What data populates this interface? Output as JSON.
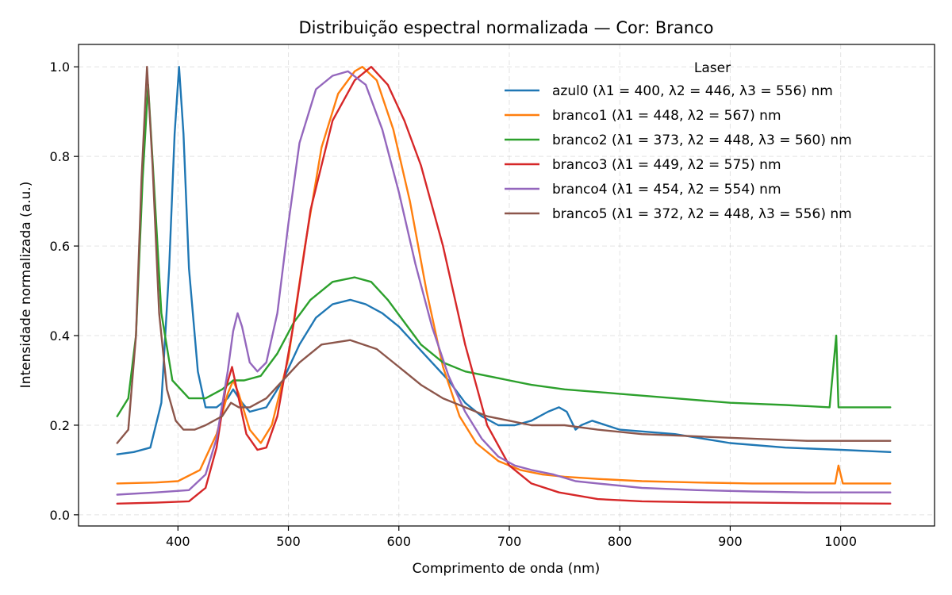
{
  "chart_data": {
    "type": "line",
    "title": "Distribuição espectral normalizada — Cor: Branco",
    "xlabel": "Comprimento de onda (nm)",
    "ylabel": "Intensidade normalizada (a.u.)",
    "xlim": [
      310,
      1085
    ],
    "ylim": [
      -0.025,
      1.05
    ],
    "xticks": [
      400,
      500,
      600,
      700,
      800,
      900,
      1000
    ],
    "yticks": [
      0.0,
      0.2,
      0.4,
      0.6,
      0.8,
      1.0
    ],
    "xtick_labels": [
      "400",
      "500",
      "600",
      "700",
      "800",
      "900",
      "1000"
    ],
    "ytick_labels": [
      "0.0",
      "0.2",
      "0.4",
      "0.6",
      "0.8",
      "1.0"
    ],
    "grid": true,
    "legend": {
      "title": "Laser",
      "placement": "top-right"
    },
    "series": [
      {
        "name": "azul0 (λ1 = 400, λ2 = 446, λ3 = 556) nm",
        "color": "#1f77b4",
        "x": [
          345,
          360,
          375,
          385,
          392,
          397,
          401,
          405,
          410,
          418,
          425,
          435,
          445,
          450,
          458,
          465,
          480,
          495,
          510,
          525,
          540,
          556,
          570,
          585,
          600,
          615,
          630,
          645,
          660,
          675,
          690,
          705,
          720,
          735,
          745,
          752,
          760,
          765,
          775,
          800,
          850,
          900,
          950,
          1000,
          1045
        ],
        "y": [
          0.135,
          0.14,
          0.15,
          0.25,
          0.55,
          0.85,
          1.0,
          0.85,
          0.55,
          0.32,
          0.24,
          0.24,
          0.26,
          0.28,
          0.25,
          0.23,
          0.24,
          0.3,
          0.38,
          0.44,
          0.47,
          0.48,
          0.47,
          0.45,
          0.42,
          0.38,
          0.34,
          0.3,
          0.25,
          0.22,
          0.2,
          0.2,
          0.21,
          0.23,
          0.24,
          0.23,
          0.19,
          0.2,
          0.21,
          0.19,
          0.18,
          0.16,
          0.15,
          0.145,
          0.14
        ]
      },
      {
        "name": "branco1 (λ1 = 448, λ2 = 567) nm",
        "color": "#ff7f0e",
        "x": [
          345,
          380,
          400,
          420,
          435,
          445,
          450,
          455,
          465,
          475,
          485,
          500,
          515,
          530,
          545,
          560,
          567,
          580,
          595,
          610,
          625,
          640,
          655,
          670,
          690,
          710,
          730,
          750,
          780,
          820,
          870,
          920,
          970,
          995,
          998,
          1002,
          1045
        ],
        "y": [
          0.07,
          0.072,
          0.075,
          0.1,
          0.18,
          0.27,
          0.3,
          0.27,
          0.19,
          0.16,
          0.2,
          0.35,
          0.6,
          0.82,
          0.94,
          0.99,
          1.0,
          0.97,
          0.86,
          0.7,
          0.5,
          0.33,
          0.22,
          0.16,
          0.12,
          0.1,
          0.09,
          0.085,
          0.08,
          0.075,
          0.072,
          0.07,
          0.07,
          0.07,
          0.11,
          0.07,
          0.07
        ]
      },
      {
        "name": "branco2 (λ1 = 373, λ2 = 448, λ3 = 560) nm",
        "color": "#2ca02c",
        "x": [
          345,
          355,
          362,
          368,
          373,
          378,
          385,
          395,
          410,
          425,
          440,
          450,
          460,
          475,
          490,
          505,
          520,
          540,
          560,
          575,
          590,
          605,
          620,
          640,
          660,
          680,
          700,
          720,
          750,
          800,
          850,
          900,
          950,
          990,
          996,
          998,
          1002,
          1045
        ],
        "y": [
          0.22,
          0.26,
          0.4,
          0.75,
          0.96,
          0.75,
          0.45,
          0.3,
          0.26,
          0.26,
          0.28,
          0.3,
          0.3,
          0.31,
          0.36,
          0.43,
          0.48,
          0.52,
          0.53,
          0.52,
          0.48,
          0.43,
          0.38,
          0.34,
          0.32,
          0.31,
          0.3,
          0.29,
          0.28,
          0.27,
          0.26,
          0.25,
          0.245,
          0.24,
          0.4,
          0.24,
          0.24,
          0.24
        ]
      },
      {
        "name": "branco3 (λ1 = 449, λ2 = 575) nm",
        "color": "#d62728",
        "x": [
          345,
          380,
          410,
          425,
          435,
          443,
          449,
          455,
          462,
          472,
          480,
          490,
          505,
          520,
          540,
          560,
          575,
          590,
          605,
          620,
          640,
          660,
          680,
          700,
          720,
          745,
          780,
          820,
          870,
          920,
          970,
          1045
        ],
        "y": [
          0.025,
          0.027,
          0.03,
          0.06,
          0.15,
          0.28,
          0.33,
          0.26,
          0.18,
          0.145,
          0.15,
          0.22,
          0.43,
          0.68,
          0.88,
          0.97,
          1.0,
          0.96,
          0.88,
          0.78,
          0.6,
          0.38,
          0.2,
          0.11,
          0.07,
          0.05,
          0.035,
          0.03,
          0.028,
          0.027,
          0.026,
          0.025
        ]
      },
      {
        "name": "branco4 (λ1 = 454, λ2 = 554) nm",
        "color": "#9467bd",
        "x": [
          345,
          380,
          410,
          425,
          435,
          445,
          450,
          454,
          458,
          465,
          472,
          480,
          490,
          500,
          510,
          525,
          540,
          554,
          570,
          585,
          600,
          615,
          630,
          645,
          660,
          675,
          690,
          705,
          720,
          740,
          760,
          780,
          820,
          870,
          920,
          970,
          1045
        ],
        "y": [
          0.045,
          0.05,
          0.055,
          0.09,
          0.17,
          0.32,
          0.41,
          0.45,
          0.42,
          0.34,
          0.32,
          0.34,
          0.45,
          0.65,
          0.83,
          0.95,
          0.98,
          0.99,
          0.96,
          0.86,
          0.72,
          0.56,
          0.42,
          0.31,
          0.23,
          0.17,
          0.13,
          0.11,
          0.1,
          0.09,
          0.075,
          0.07,
          0.06,
          0.055,
          0.052,
          0.05,
          0.05
        ]
      },
      {
        "name": "branco5 (λ1 = 372, λ2 = 448, λ3 = 556) nm",
        "color": "#8c564b",
        "x": [
          345,
          355,
          362,
          367,
          372,
          377,
          383,
          390,
          398,
          405,
          415,
          425,
          440,
          448,
          455,
          465,
          480,
          495,
          510,
          530,
          556,
          580,
          600,
          620,
          640,
          660,
          680,
          700,
          720,
          750,
          780,
          820,
          870,
          920,
          970,
          1045
        ],
        "y": [
          0.16,
          0.19,
          0.4,
          0.75,
          1.0,
          0.78,
          0.45,
          0.28,
          0.21,
          0.19,
          0.19,
          0.2,
          0.22,
          0.25,
          0.24,
          0.24,
          0.26,
          0.3,
          0.34,
          0.38,
          0.39,
          0.37,
          0.33,
          0.29,
          0.26,
          0.24,
          0.22,
          0.21,
          0.2,
          0.2,
          0.19,
          0.18,
          0.175,
          0.17,
          0.165,
          0.165
        ]
      }
    ]
  }
}
